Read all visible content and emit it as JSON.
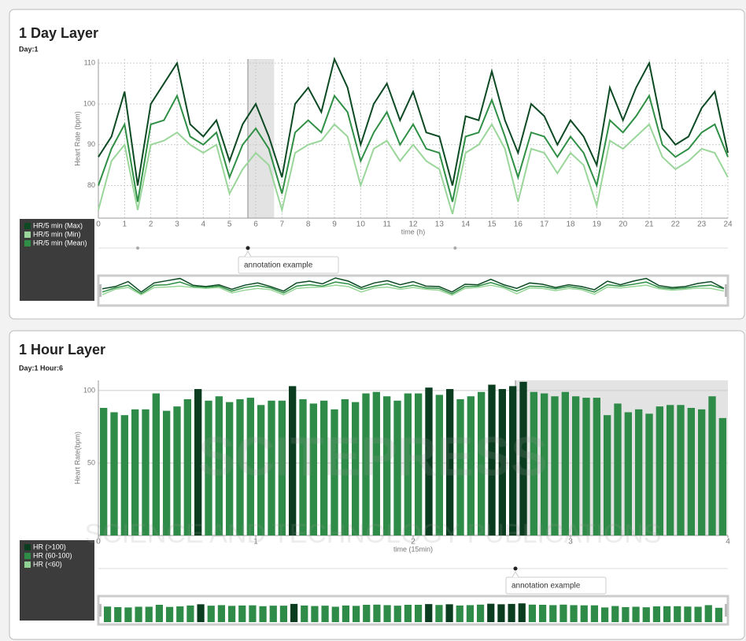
{
  "watermark": [
    "SCITEPRESS",
    "SCIENCE AND TECHNOLOGY PUBLICATIONS"
  ],
  "chart_data": [
    {
      "type": "line",
      "title": "1 Day Layer",
      "subtitle": "Day:1",
      "x_label": "time (h)",
      "y_label": "Heart Rate (bpm)",
      "x": [
        0,
        0.5,
        1,
        1.5,
        2,
        2.5,
        3,
        3.5,
        4,
        4.5,
        5,
        5.5,
        6,
        6.5,
        7,
        7.5,
        8,
        8.5,
        9,
        9.5,
        10,
        10.5,
        11,
        11.5,
        12,
        12.5,
        13,
        13.5,
        14,
        14.5,
        15,
        15.5,
        16,
        16.5,
        17,
        17.5,
        18,
        18.5,
        19,
        19.5,
        20,
        20.5,
        21,
        21.5,
        22,
        22.5,
        23,
        23.5,
        24
      ],
      "series": [
        {
          "name": "HR/5 min (Max)",
          "color": "#0d4a24",
          "values": [
            87,
            92,
            103,
            80,
            100,
            105,
            110,
            95,
            92,
            96,
            86,
            95,
            100,
            92,
            82,
            100,
            104,
            98,
            111,
            104,
            90,
            100,
            105,
            96,
            103,
            93,
            92,
            80,
            97,
            96,
            108,
            96,
            88,
            100,
            97,
            90,
            96,
            92,
            85,
            104,
            96,
            104,
            110,
            94,
            90,
            92,
            99,
            103,
            88
          ]
        },
        {
          "name": "HR/5 min (Min)",
          "color": "#9ad69a",
          "values": [
            74,
            86,
            90,
            74,
            90,
            91,
            93,
            90,
            88,
            90,
            78,
            84,
            88,
            85,
            74,
            88,
            90,
            91,
            95,
            92,
            80,
            89,
            91,
            86,
            90,
            86,
            84,
            73,
            88,
            90,
            95,
            89,
            76,
            89,
            88,
            83,
            88,
            85,
            75,
            91,
            89,
            92,
            95,
            87,
            84,
            86,
            89,
            88,
            82
          ]
        },
        {
          "name": "HR/5 min (Mean)",
          "color": "#2f8f45",
          "values": [
            80,
            89,
            95,
            76,
            95,
            96,
            102,
            92,
            90,
            93,
            82,
            90,
            94,
            89,
            78,
            93,
            96,
            93,
            102,
            98,
            86,
            93,
            98,
            90,
            95,
            89,
            88,
            76,
            92,
            93,
            101,
            92,
            82,
            93,
            92,
            87,
            92,
            88,
            80,
            96,
            93,
            97,
            102,
            90,
            87,
            89,
            93,
            95,
            87
          ]
        }
      ],
      "xlim": [
        0,
        24
      ],
      "xticks": [
        0,
        1,
        2,
        3,
        4,
        5,
        6,
        7,
        8,
        9,
        10,
        11,
        12,
        13,
        14,
        15,
        16,
        17,
        18,
        19,
        20,
        21,
        22,
        23,
        24
      ],
      "ylim": [
        72,
        111
      ],
      "yticks": [
        80,
        90,
        100,
        110
      ],
      "grid": true,
      "selection": [
        5.7,
        6.7
      ],
      "annotations": [
        {
          "x": 1.5
        },
        {
          "x": 5.7,
          "text": "annotation example"
        },
        {
          "x": 13.6
        }
      ]
    },
    {
      "type": "bar",
      "title": "1 Hour Layer",
      "subtitle": "Day:1 Hour:6",
      "x_label": "time (15min)",
      "y_label": "Heart Rate(bpm)",
      "series": [
        {
          "name": "HR (>100)",
          "color": "#0a3d1f",
          "values": [
            null,
            null,
            null,
            null,
            null,
            null,
            null,
            null,
            null,
            101,
            null,
            null,
            null,
            null,
            null,
            null,
            null,
            null,
            103,
            null,
            null,
            null,
            null,
            null,
            null,
            null,
            null,
            null,
            null,
            null,
            null,
            102,
            null,
            101,
            null,
            null,
            null,
            104,
            101,
            103,
            106,
            null,
            null,
            null,
            null,
            null,
            null,
            null,
            null,
            null,
            null,
            null,
            null,
            null,
            null,
            null,
            null,
            null,
            null,
            null
          ]
        },
        {
          "name": "HR (60-100)",
          "color": "#2e8b48",
          "values": [
            88,
            85,
            83,
            87,
            87,
            98,
            86,
            89,
            94,
            null,
            93,
            96,
            92,
            94,
            95,
            90,
            93,
            93,
            null,
            94,
            91,
            93,
            87,
            94,
            92,
            98,
            99,
            96,
            93,
            98,
            98,
            null,
            97,
            null,
            94,
            96,
            99,
            null,
            null,
            null,
            null,
            99,
            98,
            96,
            99,
            96,
            95,
            95,
            83,
            91,
            85,
            87,
            84,
            89,
            90,
            90,
            88,
            87,
            96,
            81
          ]
        },
        {
          "name": "HR (<60)",
          "color": "#90d090",
          "values": [
            null,
            null,
            null,
            null,
            null,
            null,
            null,
            null,
            null,
            null,
            null,
            null,
            null,
            null,
            null,
            null,
            null,
            null,
            null,
            null,
            null,
            null,
            null,
            null,
            null,
            null,
            null,
            null,
            null,
            null,
            null,
            null,
            null,
            null,
            null,
            null,
            null,
            null,
            null,
            null,
            null,
            null,
            null,
            null,
            null,
            null,
            null,
            null,
            null,
            null,
            null,
            null,
            null,
            null,
            null,
            null,
            null,
            null,
            null,
            null
          ]
        }
      ],
      "xlim": [
        0,
        4
      ],
      "xticks": [
        0,
        1,
        2,
        3,
        4
      ],
      "ylim": [
        0,
        107
      ],
      "yticks": [
        50,
        100
      ],
      "grid": true,
      "selection": [
        2.65,
        4
      ],
      "annotations": [
        {
          "x": 2.65,
          "text": "annotation example"
        }
      ]
    }
  ]
}
